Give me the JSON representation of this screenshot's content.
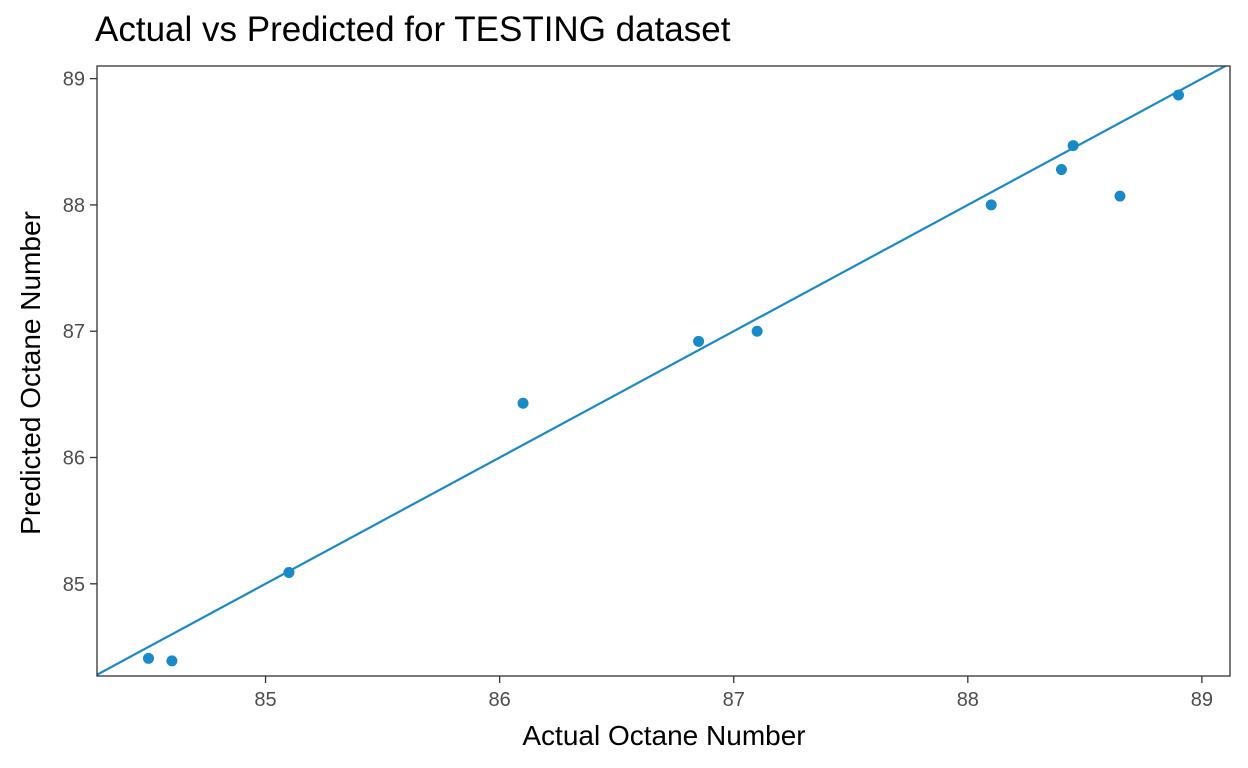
{
  "chart_data": {
    "type": "scatter",
    "title": "Actual vs Predicted for TESTING dataset",
    "xlabel": "Actual Octane Number",
    "ylabel": "Predicted Octane Number",
    "xlim": [
      84.28,
      89.12
    ],
    "ylim": [
      84.27,
      89.1
    ],
    "xticks": [
      85,
      86,
      87,
      88,
      89
    ],
    "yticks": [
      85,
      86,
      87,
      88,
      89
    ],
    "grid": false,
    "legend": "none",
    "point_color": "#1a8ac6",
    "line_color": "#1a8ac6",
    "points": [
      {
        "x": 84.5,
        "y": 84.41
      },
      {
        "x": 84.6,
        "y": 84.39
      },
      {
        "x": 85.1,
        "y": 85.09
      },
      {
        "x": 86.1,
        "y": 86.43
      },
      {
        "x": 86.85,
        "y": 86.92
      },
      {
        "x": 87.1,
        "y": 87.0
      },
      {
        "x": 88.1,
        "y": 88.0
      },
      {
        "x": 88.4,
        "y": 88.28
      },
      {
        "x": 88.45,
        "y": 88.47
      },
      {
        "x": 88.65,
        "y": 88.07
      },
      {
        "x": 88.9,
        "y": 88.87
      }
    ],
    "fit_line": {
      "slope": 1.0,
      "intercept": 0.0
    }
  }
}
